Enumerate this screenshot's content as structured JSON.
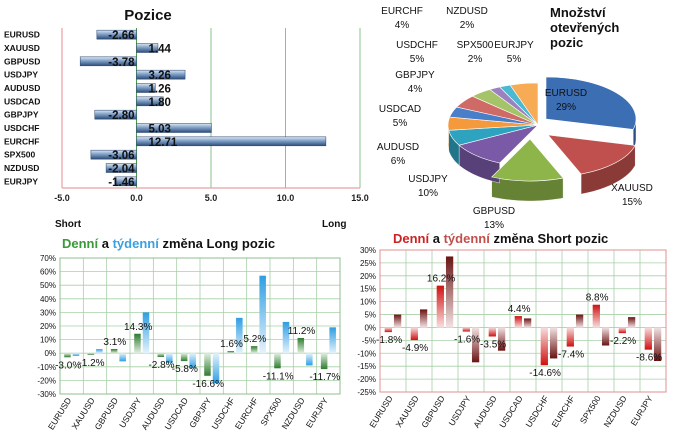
{
  "chart_data": [
    {
      "id": "pozice",
      "type": "bar",
      "orientation": "horizontal",
      "title": "Pozice",
      "categories": [
        "EURUSD",
        "XAUUSD",
        "GBPUSD",
        "USDJPY",
        "AUDUSD",
        "USDCAD",
        "GBPJPY",
        "USDCHF",
        "EURCHF",
        "SPX500",
        "NZDUSD",
        "EURJPY"
      ],
      "values": [
        -2.66,
        1.44,
        -3.78,
        3.26,
        1.26,
        1.8,
        -2.8,
        5.03,
        12.71,
        -3.06,
        -2.04,
        -1.46
      ],
      "value_labels": [
        "-2.66",
        "1.44",
        "-3.78",
        "3.26",
        "1.26",
        "1.80",
        "-2.80",
        "5.03",
        "12.71",
        "-3.06",
        "-2.04",
        "-1.46"
      ],
      "xlim": [
        -5,
        15
      ],
      "xticks": [
        "-5.0",
        "0.0",
        "5.0",
        "10.0",
        "15.0"
      ],
      "xtick_values": [
        -5,
        0,
        5,
        10,
        15
      ],
      "left_label": "Short",
      "right_label": "Long",
      "grid": "vertical",
      "colors": {
        "bar": "#3c5f8f",
        "bar_light": "#c9d8ea",
        "border": "#e8a0a0",
        "grid": "#8cc08c",
        "zero": "#4a9a4a"
      }
    },
    {
      "id": "mnozstvi",
      "type": "pie",
      "title": [
        "Množství",
        "otevřených",
        "pozic"
      ],
      "slices": [
        {
          "name": "EURUSD",
          "pct": "29%",
          "value": 29,
          "color": "#3c6eb4"
        },
        {
          "name": "XAUUSD",
          "pct": "15%",
          "value": 15,
          "color": "#c0504d"
        },
        {
          "name": "GBPUSD",
          "pct": "13%",
          "value": 13,
          "color": "#8eb54a"
        },
        {
          "name": "USDJPY",
          "pct": "10%",
          "value": 10,
          "color": "#7a5aa6"
        },
        {
          "name": "AUDUSD",
          "pct": "6%",
          "value": 6,
          "color": "#2ea3bf"
        },
        {
          "name": "USDCAD",
          "pct": "5%",
          "value": 5,
          "color": "#f59a3c"
        },
        {
          "name": "GBPJPY",
          "pct": "4%",
          "value": 4,
          "color": "#4a7ec9"
        },
        {
          "name": "USDCHF",
          "pct": "5%",
          "value": 5,
          "color": "#d06a66"
        },
        {
          "name": "EURCHF",
          "pct": "4%",
          "value": 4,
          "color": "#a5c46a"
        },
        {
          "name": "NZDUSD",
          "pct": "2%",
          "value": 2,
          "color": "#9b82bf"
        },
        {
          "name": "SPX500",
          "pct": "2%",
          "value": 2,
          "color": "#4db8d1"
        },
        {
          "name": "EURJPY",
          "pct": "5%",
          "value": 5,
          "color": "#f7ab55"
        }
      ]
    },
    {
      "id": "long",
      "type": "bar",
      "title_parts": [
        {
          "text": "Denní",
          "color": "#3a9a3a"
        },
        {
          "text": " a ",
          "color": "#111111"
        },
        {
          "text": "týdenní",
          "color": "#3aa0e0"
        },
        {
          "text": " změna Long pozic",
          "color": "#111111"
        }
      ],
      "categories": [
        "EURUSD",
        "XAUUSD",
        "GBPUSD",
        "USDJPY",
        "AUDUSD",
        "USDCAD",
        "GBPJPY",
        "USDCHF",
        "EURCHF",
        "SPX500",
        "NZDUSD",
        "EURJPY"
      ],
      "series": [
        {
          "name": "Denní",
          "values": [
            -3.0,
            -1.2,
            3.1,
            14.3,
            -2.8,
            -5.8,
            -16.6,
            1.6,
            5.2,
            -11.1,
            11.2,
            -11.7
          ]
        },
        {
          "name": "Týdenní",
          "values": [
            -2.0,
            3.0,
            -6.0,
            30.0,
            -7.0,
            -11.0,
            -22.0,
            26.0,
            57.0,
            23.0,
            -9.0,
            19.0
          ]
        }
      ],
      "value_labels": [
        "-3.0%",
        "-1.2%",
        "3.1%",
        "14.3%",
        "-2.8%",
        "-5.8%",
        "-16.6%",
        "1.6%",
        "5.2%",
        "-11.1%",
        "11.2%",
        "-11.7%"
      ],
      "ylim": [
        -30,
        70
      ],
      "yticks": [
        "70%",
        "60%",
        "50%",
        "40%",
        "30%",
        "20%",
        "10%",
        "0%",
        "-10%",
        "-20%",
        "-30%"
      ],
      "ytick_values": [
        70,
        60,
        50,
        40,
        30,
        20,
        10,
        0,
        -10,
        -20,
        -30
      ],
      "colors": {
        "daily": "#3a8a3a",
        "weekly": "#3aa0e0",
        "grid": "#a8d0a8"
      }
    },
    {
      "id": "short",
      "type": "bar",
      "title_parts": [
        {
          "text": "Denní",
          "color": "#cc2222"
        },
        {
          "text": " a ",
          "color": "#111111"
        },
        {
          "text": "týdenní",
          "color": "#c0504d"
        },
        {
          "text": " změna Short pozic",
          "color": "#111111"
        }
      ],
      "categories": [
        "EURUSD",
        "XAUUSD",
        "GBPUSD",
        "USDJPY",
        "AUDUSD",
        "USDCAD",
        "USDCHF",
        "EURCHF",
        "SPX500",
        "NZDUSD",
        "EURJPY"
      ],
      "series": [
        {
          "name": "Denní",
          "values": [
            -1.8,
            -4.9,
            16.2,
            -1.6,
            -3.5,
            4.4,
            -14.6,
            -7.4,
            8.8,
            -2.2,
            -8.6
          ]
        },
        {
          "name": "Týdenní",
          "values": [
            5.0,
            7.0,
            27.5,
            -13.5,
            -9.0,
            3.5,
            -12.0,
            5.0,
            -7.0,
            4.0,
            -13.0
          ]
        }
      ],
      "value_labels": [
        "-1.8%",
        "-4.9%",
        "16.2%",
        "-1.6%",
        "-3.5%",
        "4.4%",
        "-14.6%",
        "-7.4%",
        "8.8%",
        "-2.2%",
        "-8.6%"
      ],
      "ylim": [
        -25,
        30
      ],
      "yticks": [
        "30%",
        "25%",
        "20%",
        "15%",
        "10%",
        "5%",
        "0%",
        "-5%",
        "-10%",
        "-15%",
        "-20%",
        "-25%"
      ],
      "ytick_values": [
        30,
        25,
        20,
        15,
        10,
        5,
        0,
        -5,
        -10,
        -15,
        -20,
        -25
      ],
      "colors": {
        "daily": "#cc1111",
        "weekly": "#7a1a1a",
        "grid": "#a8d0a8",
        "border": "#e09090"
      }
    }
  ]
}
